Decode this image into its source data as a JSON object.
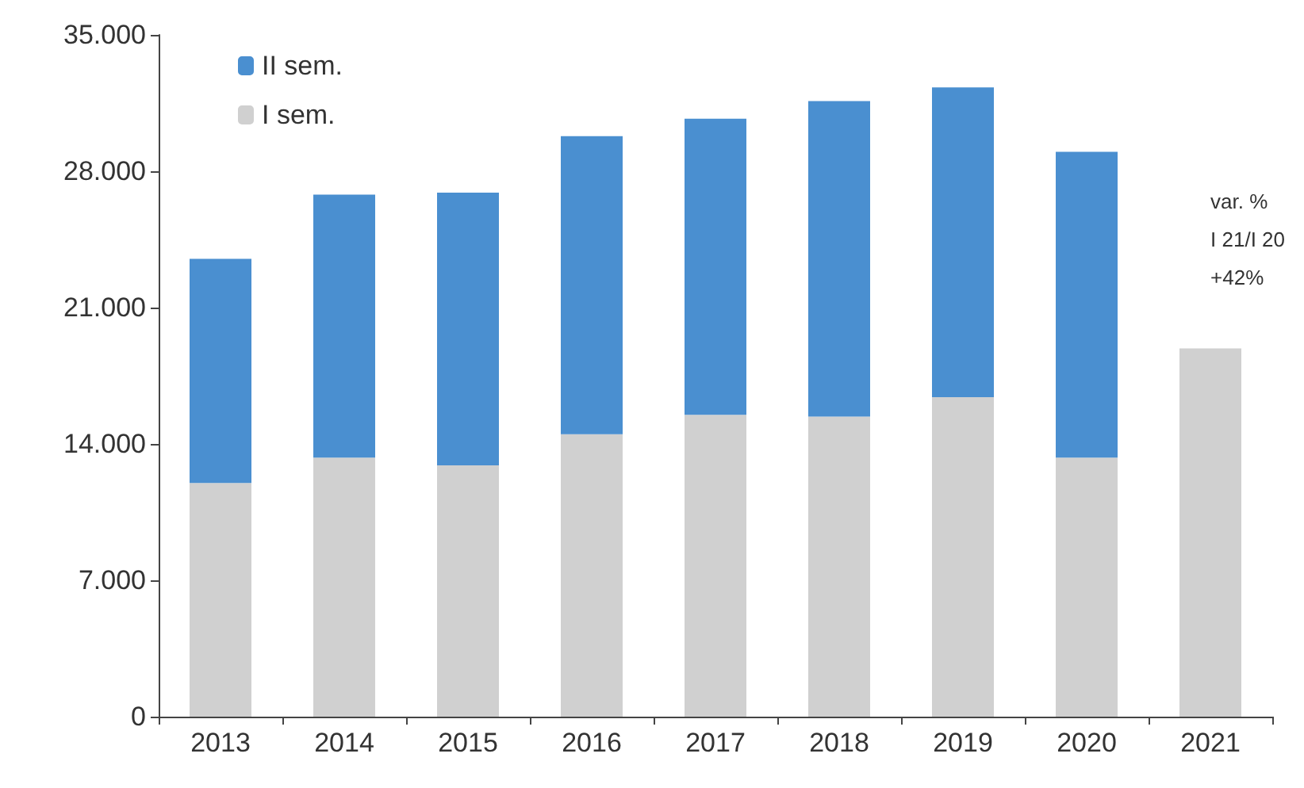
{
  "chart_data": {
    "type": "bar",
    "stacked": true,
    "categories": [
      "2013",
      "2014",
      "2015",
      "2016",
      "2017",
      "2018",
      "2019",
      "2020",
      "2021"
    ],
    "series": [
      {
        "name": "I sem.",
        "color": "#d0d0d0",
        "values": [
          12000,
          13300,
          12900,
          14500,
          15500,
          15400,
          16400,
          13300,
          18900
        ]
      },
      {
        "name": "II sem.",
        "color": "#4a8fd0",
        "values": [
          11500,
          13500,
          14000,
          15300,
          15200,
          16200,
          15900,
          15700,
          null
        ]
      }
    ],
    "ylim": [
      0,
      35000
    ],
    "yticks": [
      {
        "value": 0,
        "label": "0"
      },
      {
        "value": 7000,
        "label": "7.000"
      },
      {
        "value": 14000,
        "label": "14.000"
      },
      {
        "value": 21000,
        "label": "21.000"
      },
      {
        "value": 28000,
        "label": "28.000"
      },
      {
        "value": 35000,
        "label": "35.000"
      }
    ],
    "annotations": [
      "var. %\nI 21/I 20\n+42%"
    ],
    "grid": false,
    "legend": "top left"
  }
}
